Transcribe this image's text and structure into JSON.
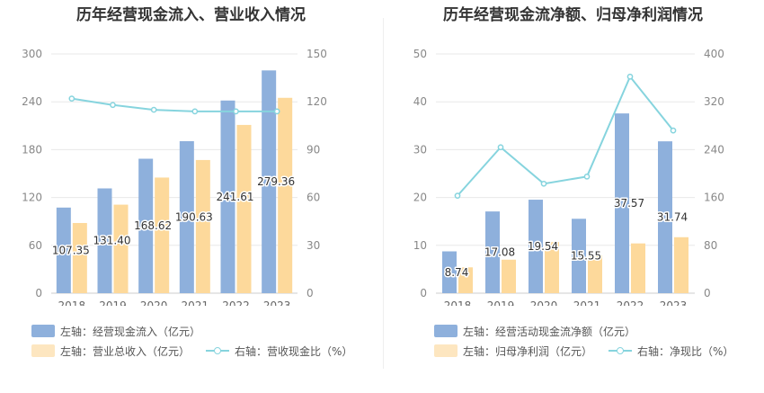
{
  "chart_data": [
    {
      "type": "bar",
      "title": "历年经营现金流入、营业收入情况",
      "categories": [
        "2018",
        "2019",
        "2020",
        "2021",
        "2022",
        "2023"
      ],
      "series": [
        {
          "name": "左轴：经营现金流入（亿元）",
          "axis": "left",
          "type": "bar",
          "color": "#8eb0dc",
          "values": [
            107.35,
            131.4,
            168.62,
            190.63,
            241.61,
            279.36
          ],
          "labels_shown": true
        },
        {
          "name": "左轴：营业总收入（亿元）",
          "axis": "left",
          "type": "bar",
          "color": "#fdd99b",
          "values": [
            88,
            111,
            145,
            167,
            211,
            245
          ]
        },
        {
          "name": "右轴：营收现金比（%）",
          "axis": "right",
          "type": "line",
          "color": "#86d4de",
          "values": [
            122,
            118,
            115,
            114,
            114,
            114
          ]
        }
      ],
      "y_left": {
        "min": 0,
        "max": 300,
        "ticks": [
          "0",
          "60",
          "120",
          "180",
          "240",
          "300"
        ]
      },
      "y_right": {
        "min": 0,
        "max": 150,
        "ticks": [
          "0",
          "30",
          "60",
          "90",
          "120",
          "150"
        ]
      },
      "grid": true,
      "legend_position": "bottom"
    },
    {
      "type": "bar",
      "title": "历年经营现金流净额、归母净利润情况",
      "categories": [
        "2018",
        "2019",
        "2020",
        "2021",
        "2022",
        "2023"
      ],
      "series": [
        {
          "name": "左轴：经营活动现金流净额（亿元）",
          "axis": "left",
          "type": "bar",
          "color": "#8eb0dc",
          "values": [
            8.74,
            17.08,
            19.54,
            15.55,
            37.57,
            31.74
          ],
          "labels_shown": true
        },
        {
          "name": "左轴：归母净利润（亿元）",
          "axis": "left",
          "type": "bar",
          "color": "#fdd99b",
          "values": [
            5.4,
            7.0,
            10.7,
            7.9,
            10.4,
            11.7
          ]
        },
        {
          "name": "右轴：净现比（%）",
          "axis": "right",
          "type": "line",
          "color": "#86d4de",
          "values": [
            163,
            244,
            183,
            195,
            362,
            272
          ]
        }
      ],
      "y_left": {
        "min": 0,
        "max": 50,
        "ticks": [
          "0",
          "10",
          "20",
          "30",
          "40",
          "50"
        ]
      },
      "y_right": {
        "min": 0,
        "max": 400,
        "ticks": [
          "0",
          "80",
          "160",
          "240",
          "320",
          "400"
        ]
      },
      "grid": true,
      "legend_position": "bottom"
    }
  ]
}
